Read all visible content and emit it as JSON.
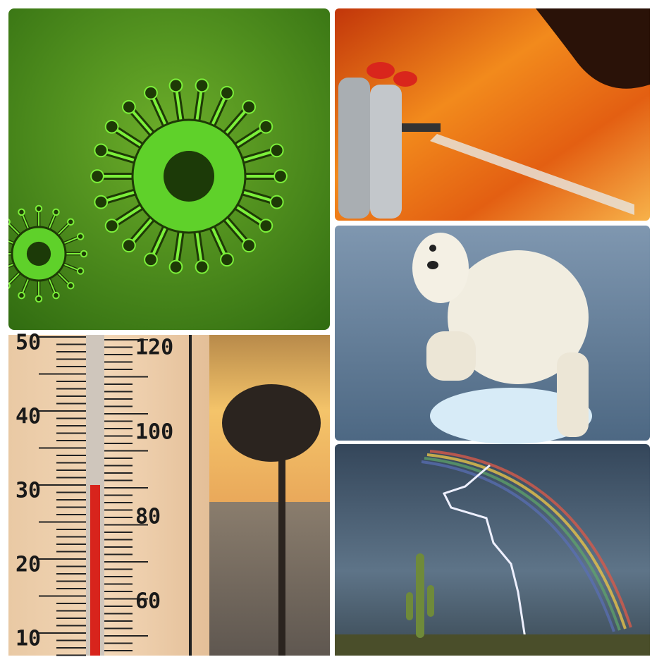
{
  "thermometer": {
    "celsius_labels": [
      50,
      40,
      30,
      20,
      10
    ],
    "fahrenheit_labels": [
      120,
      100,
      80,
      60
    ]
  }
}
